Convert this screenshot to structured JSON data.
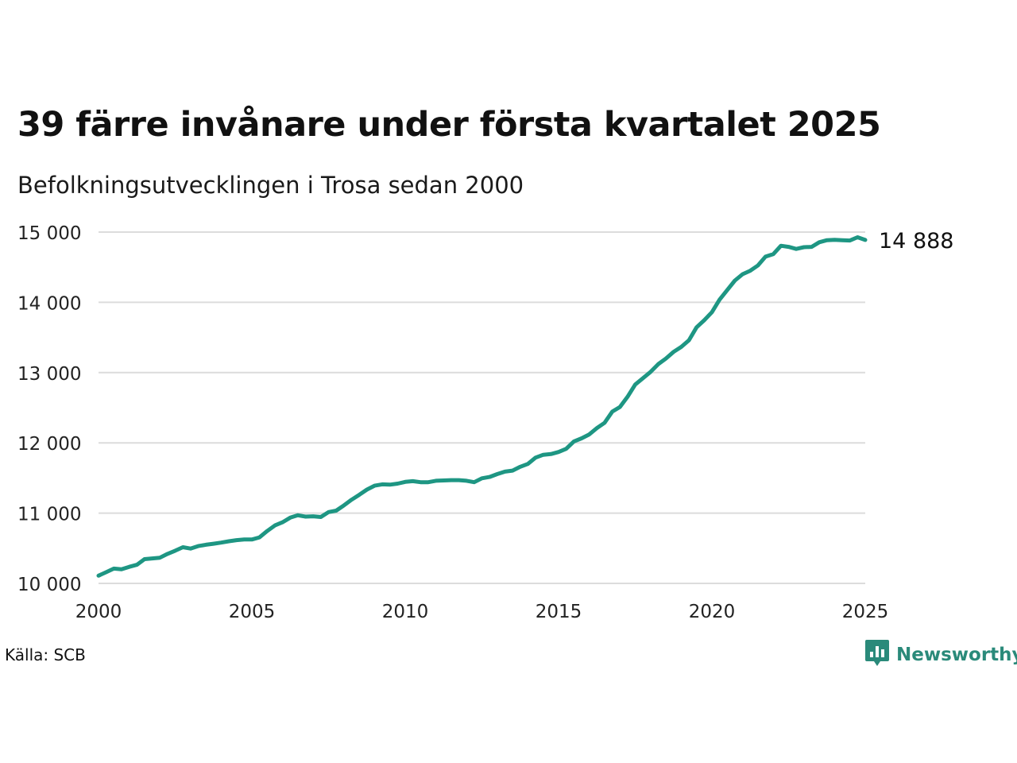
{
  "header": {
    "title": "39 färre invånare under första kvartalet 2025",
    "subtitle": "Befolkningsutvecklingen i Trosa sedan 2000"
  },
  "footer": {
    "source": "Källa: SCB",
    "brand": "Newsworthy",
    "brand_icon": "newsworthy-logo-icon",
    "brand_color": "#2a8a7a"
  },
  "chart_data": {
    "type": "line",
    "title": "39 färre invånare under första kvartalet 2025",
    "subtitle": "Befolkningsutvecklingen i Trosa sedan 2000",
    "xlabel": "",
    "ylabel": "",
    "xlim": [
      2000,
      2025
    ],
    "ylim": [
      10000,
      15000
    ],
    "x_ticks": [
      2000,
      2005,
      2010,
      2015,
      2020,
      2025
    ],
    "x_tick_labels": [
      "2000",
      "2005",
      "2010",
      "2015",
      "2020",
      "2025"
    ],
    "y_ticks": [
      10000,
      11000,
      12000,
      13000,
      14000,
      15000
    ],
    "y_tick_labels": [
      "10 000",
      "11 000",
      "12 000",
      "13 000",
      "14 000",
      "15 000"
    ],
    "grid": "horizontal",
    "line_color": "#1e9683",
    "end_label": "14 888",
    "series": [
      {
        "x": [
          2000.0,
          2000.25,
          2000.5,
          2000.75,
          2001.0,
          2001.25,
          2001.5,
          2001.75,
          2002.0,
          2002.25,
          2002.5,
          2002.75,
          2003.0,
          2003.25,
          2003.5,
          2003.75,
          2004.0,
          2004.25,
          2004.5,
          2004.75,
          2005.0,
          2005.25,
          2005.5,
          2005.75,
          2006.0,
          2006.25,
          2006.5,
          2006.75,
          2007.0,
          2007.25,
          2007.5,
          2007.75,
          2008.0,
          2008.25,
          2008.5,
          2008.75,
          2009.0,
          2009.25,
          2009.5,
          2009.75,
          2010.0,
          2010.25,
          2010.5,
          2010.75,
          2011.0,
          2011.25,
          2011.5,
          2011.75,
          2012.0,
          2012.25,
          2012.5,
          2012.75,
          2013.0,
          2013.25,
          2013.5,
          2013.75,
          2014.0,
          2014.25,
          2014.5,
          2014.75,
          2015.0,
          2015.25,
          2015.5,
          2015.75,
          2016.0,
          2016.25,
          2016.5,
          2016.75,
          2017.0,
          2017.25,
          2017.5,
          2017.75,
          2018.0,
          2018.25,
          2018.5,
          2018.75,
          2019.0,
          2019.25,
          2019.5,
          2019.75,
          2020.0,
          2020.25,
          2020.5,
          2020.75,
          2021.0,
          2021.25,
          2021.5,
          2021.75,
          2022.0,
          2022.25,
          2022.5,
          2022.75,
          2023.0,
          2023.25,
          2023.5,
          2023.75,
          2024.0,
          2024.25,
          2024.5,
          2024.75,
          2025.0
        ],
        "values": [
          10110,
          10160,
          10210,
          10200,
          10235,
          10265,
          10345,
          10355,
          10365,
          10420,
          10465,
          10515,
          10495,
          10530,
          10550,
          10565,
          10580,
          10600,
          10615,
          10625,
          10625,
          10655,
          10745,
          10825,
          10870,
          10935,
          10970,
          10950,
          10955,
          10945,
          11015,
          11035,
          11110,
          11190,
          11260,
          11335,
          11390,
          11410,
          11405,
          11420,
          11445,
          11455,
          11440,
          11440,
          11460,
          11465,
          11470,
          11470,
          11460,
          11440,
          11495,
          11515,
          11555,
          11590,
          11605,
          11660,
          11700,
          11790,
          11830,
          11840,
          11870,
          11915,
          12020,
          12065,
          12120,
          12210,
          12285,
          12445,
          12510,
          12655,
          12830,
          12920,
          13010,
          13120,
          13200,
          13295,
          13365,
          13460,
          13645,
          13745,
          13860,
          14040,
          14175,
          14310,
          14400,
          14450,
          14525,
          14650,
          14685,
          14805,
          14790,
          14760,
          14785,
          14790,
          14855,
          14885,
          14890,
          14885,
          14880,
          14927,
          14888
        ]
      }
    ]
  }
}
